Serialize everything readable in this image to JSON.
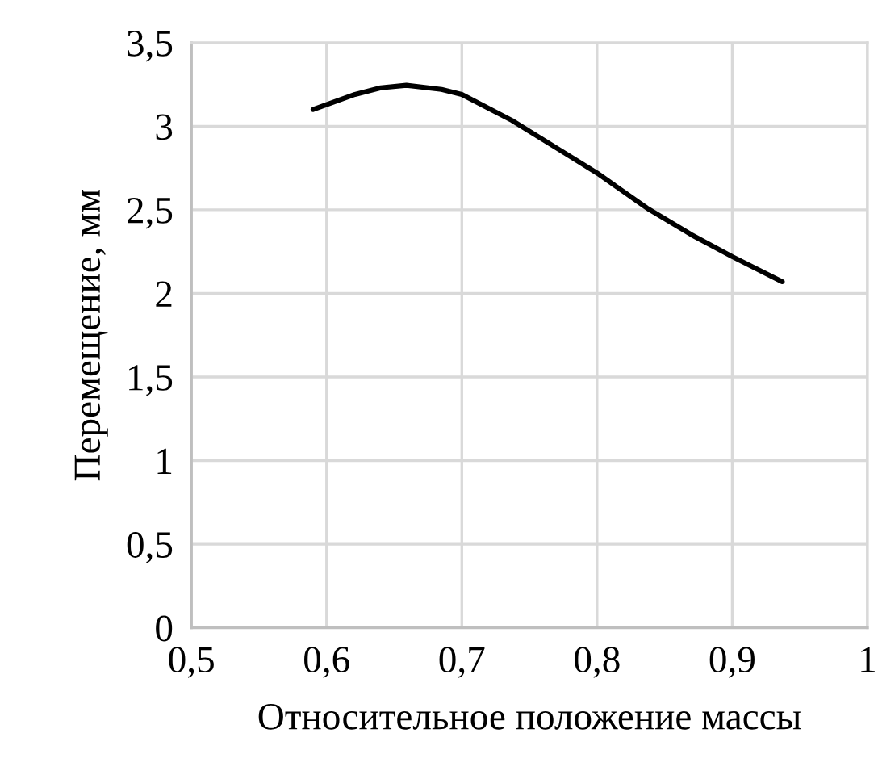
{
  "chart_data": {
    "type": "line",
    "xlabel": "Относительное положение массы",
    "ylabel": "Перемещение, мм",
    "series": [
      {
        "color": "#000000",
        "x": [
          0.59,
          0.621,
          0.64,
          0.659,
          0.685,
          0.7,
          0.737,
          0.77,
          0.8,
          0.837,
          0.87,
          0.9,
          0.937
        ],
        "values": [
          3.1,
          3.19,
          3.23,
          3.245,
          3.22,
          3.19,
          3.035,
          2.87,
          2.72,
          2.51,
          2.35,
          2.22,
          2.07
        ]
      }
    ],
    "xlim": [
      0.5,
      1
    ],
    "xticks": [
      {
        "value": 0.5,
        "label": "0,5"
      },
      {
        "value": 0.6,
        "label": "0,6"
      },
      {
        "value": 0.7,
        "label": "0,7"
      },
      {
        "value": 0.8,
        "label": "0,8"
      },
      {
        "value": 0.9,
        "label": "0,9"
      },
      1
    ],
    "ylim": [
      0,
      3.5
    ],
    "yticks": [
      0,
      {
        "value": 0.5,
        "label": "0,5"
      },
      1,
      {
        "value": 1.5,
        "label": "1,5"
      },
      2,
      {
        "value": 2.5,
        "label": "2,5"
      },
      3,
      {
        "value": 3.5,
        "label": "3,5"
      }
    ],
    "grid": true,
    "line_style": "solid"
  }
}
